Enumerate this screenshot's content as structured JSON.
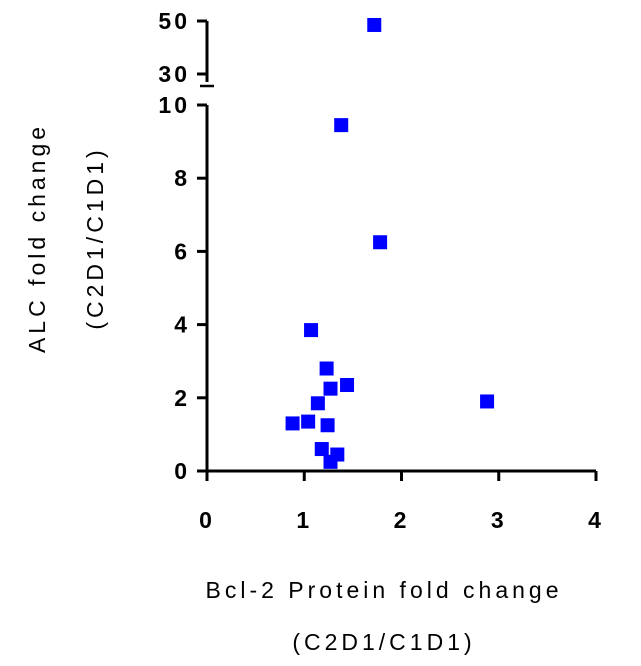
{
  "chart_data": {
    "type": "scatter",
    "xlabel_lines": [
      "Bcl-2 Protein fold change",
      "(C2D1/C1D1)"
    ],
    "ylabel_lines": [
      "ALC fold change",
      "(C2D1/C1D1)"
    ],
    "xlim": [
      0,
      4
    ],
    "x_ticks": [
      0,
      1,
      2,
      3,
      4
    ],
    "y_lower_segment": {
      "ylim": [
        0,
        10
      ],
      "ticks": [
        0,
        2,
        4,
        6,
        8,
        10
      ]
    },
    "y_upper_segment": {
      "ylim": [
        30,
        50
      ],
      "ticks": [
        30,
        50
      ]
    },
    "y_axis_broken": true,
    "marker": "square",
    "marker_color": "#0000ff",
    "grid": false,
    "points": [
      {
        "x": 1.72,
        "y": 48.5
      },
      {
        "x": 1.38,
        "y": 9.45
      },
      {
        "x": 1.78,
        "y": 6.25
      },
      {
        "x": 1.07,
        "y": 3.85
      },
      {
        "x": 1.23,
        "y": 2.8
      },
      {
        "x": 1.44,
        "y": 2.35
      },
      {
        "x": 1.27,
        "y": 2.25
      },
      {
        "x": 1.14,
        "y": 1.85
      },
      {
        "x": 2.88,
        "y": 1.9
      },
      {
        "x": 0.88,
        "y": 1.3
      },
      {
        "x": 1.04,
        "y": 1.35
      },
      {
        "x": 1.24,
        "y": 1.25
      },
      {
        "x": 1.18,
        "y": 0.6
      },
      {
        "x": 1.34,
        "y": 0.45
      },
      {
        "x": 1.27,
        "y": 0.25
      }
    ]
  }
}
